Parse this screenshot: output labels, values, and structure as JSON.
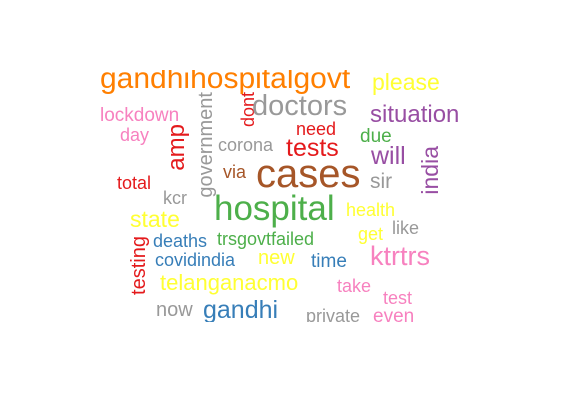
{
  "word_cloud": {
    "words": [
      {
        "text": "gandhihospitalgovt",
        "color": "#ff7f00"
      },
      {
        "text": "please",
        "color": "#ffff33"
      },
      {
        "text": "lockdown",
        "color": "#f781bf"
      },
      {
        "text": "day",
        "color": "#f781bf"
      },
      {
        "text": "government",
        "color": "#999999"
      },
      {
        "text": "dont",
        "color": "#e41a1c"
      },
      {
        "text": "doctors",
        "color": "#999999"
      },
      {
        "text": "situation",
        "color": "#984ea3"
      },
      {
        "text": "amp",
        "color": "#e41a1c"
      },
      {
        "text": "need",
        "color": "#e41a1c"
      },
      {
        "text": "due",
        "color": "#4daf4a"
      },
      {
        "text": "corona",
        "color": "#999999"
      },
      {
        "text": "tests",
        "color": "#e41a1c"
      },
      {
        "text": "will",
        "color": "#984ea3"
      },
      {
        "text": "india",
        "color": "#984ea3"
      },
      {
        "text": "via",
        "color": "#a65628"
      },
      {
        "text": "cases",
        "color": "#a65628"
      },
      {
        "text": "sir",
        "color": "#999999"
      },
      {
        "text": "total",
        "color": "#e41a1c"
      },
      {
        "text": "kcr",
        "color": "#999999"
      },
      {
        "text": "hospital",
        "color": "#4daf4a"
      },
      {
        "text": "health",
        "color": "#ffff33"
      },
      {
        "text": "state",
        "color": "#ffff33"
      },
      {
        "text": "like",
        "color": "#999999"
      },
      {
        "text": "deaths",
        "color": "#377eb8"
      },
      {
        "text": "trsgovtfailed",
        "color": "#4daf4a"
      },
      {
        "text": "get",
        "color": "#ffff33"
      },
      {
        "text": "ktrtrs",
        "color": "#f781bf"
      },
      {
        "text": "testing",
        "color": "#e41a1c"
      },
      {
        "text": "covidindia",
        "color": "#377eb8"
      },
      {
        "text": "new",
        "color": "#ffff33"
      },
      {
        "text": "time",
        "color": "#377eb8"
      },
      {
        "text": "telanganacmo",
        "color": "#ffff33"
      },
      {
        "text": "take",
        "color": "#f781bf"
      },
      {
        "text": "test",
        "color": "#f781bf"
      },
      {
        "text": "now",
        "color": "#999999"
      },
      {
        "text": "gandhi",
        "color": "#377eb8"
      },
      {
        "text": "private",
        "color": "#999999"
      },
      {
        "text": "even",
        "color": "#f781bf"
      }
    ]
  }
}
